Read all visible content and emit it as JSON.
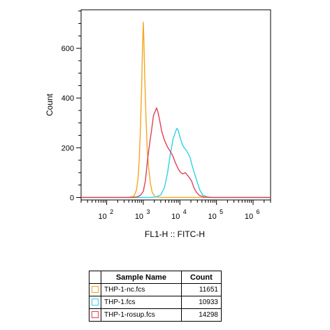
{
  "chart_data": {
    "type": "line",
    "title": "",
    "xlabel": "FL1-H :: FITC-H",
    "ylabel": "Count",
    "x_scale": "log",
    "x_ticks": [
      {
        "value": 100,
        "mantissa": "10",
        "exponent": "2"
      },
      {
        "value": 1000,
        "mantissa": "10",
        "exponent": "3"
      },
      {
        "value": 10000,
        "mantissa": "10",
        "exponent": "4"
      },
      {
        "value": 100000,
        "mantissa": "10",
        "exponent": "5"
      },
      {
        "value": 1000000,
        "mantissa": "10",
        "exponent": "6"
      }
    ],
    "y_ticks": [
      0,
      200,
      400,
      600
    ],
    "xlim": [
      20,
      3000000
    ],
    "ylim": [
      -10,
      755
    ],
    "grid": false,
    "series": [
      {
        "name": "THP-1-nc.fcs",
        "color": "#f5a623",
        "points": [
          [
            20,
            0
          ],
          [
            400,
            0
          ],
          [
            550,
            5
          ],
          [
            650,
            30
          ],
          [
            720,
            80
          ],
          [
            780,
            160
          ],
          [
            840,
            290
          ],
          [
            900,
            450
          ],
          [
            960,
            620
          ],
          [
            1000,
            705
          ],
          [
            1040,
            630
          ],
          [
            1100,
            480
          ],
          [
            1180,
            330
          ],
          [
            1280,
            190
          ],
          [
            1400,
            120
          ],
          [
            1550,
            60
          ],
          [
            1750,
            20
          ],
          [
            2100,
            3
          ],
          [
            3000,
            0
          ],
          [
            3000000,
            0
          ]
        ]
      },
      {
        "name": "THP-1.fcs",
        "color": "#2ed3e6",
        "points": [
          [
            20,
            0
          ],
          [
            1500,
            0
          ],
          [
            2200,
            2
          ],
          [
            3000,
            10
          ],
          [
            3800,
            40
          ],
          [
            4600,
            100
          ],
          [
            5500,
            175
          ],
          [
            6500,
            235
          ],
          [
            7500,
            262
          ],
          [
            8200,
            278
          ],
          [
            9000,
            270
          ],
          [
            10000,
            245
          ],
          [
            11500,
            215
          ],
          [
            13000,
            200
          ],
          [
            15000,
            190
          ],
          [
            17000,
            175
          ],
          [
            19000,
            160
          ],
          [
            22000,
            125
          ],
          [
            26000,
            90
          ],
          [
            30000,
            60
          ],
          [
            35000,
            30
          ],
          [
            42000,
            10
          ],
          [
            55000,
            2
          ],
          [
            80000,
            0
          ],
          [
            3000000,
            0
          ]
        ]
      },
      {
        "name": "THP-1-rosup.fcs",
        "color": "#e0405a",
        "points": [
          [
            20,
            0
          ],
          [
            500,
            0
          ],
          [
            700,
            3
          ],
          [
            850,
            10
          ],
          [
            1000,
            25
          ],
          [
            1150,
            70
          ],
          [
            1300,
            150
          ],
          [
            1500,
            220
          ],
          [
            1700,
            275
          ],
          [
            1900,
            330
          ],
          [
            2100,
            345
          ],
          [
            2300,
            360
          ],
          [
            2500,
            345
          ],
          [
            2800,
            310
          ],
          [
            3200,
            265
          ],
          [
            3800,
            230
          ],
          [
            4500,
            205
          ],
          [
            5500,
            185
          ],
          [
            6500,
            165
          ],
          [
            7500,
            140
          ],
          [
            9000,
            115
          ],
          [
            10500,
            100
          ],
          [
            12000,
            95
          ],
          [
            14000,
            100
          ],
          [
            16000,
            90
          ],
          [
            18000,
            80
          ],
          [
            21000,
            65
          ],
          [
            24000,
            40
          ],
          [
            28000,
            22
          ],
          [
            34000,
            8
          ],
          [
            45000,
            2
          ],
          [
            70000,
            0
          ],
          [
            3000000,
            0
          ]
        ]
      }
    ]
  },
  "legend": {
    "headers": {
      "name": "Sample Name",
      "count": "Count"
    },
    "rows": [
      {
        "name": "THP-1-nc.fcs",
        "count": "11651",
        "color": "#f5a623"
      },
      {
        "name": "THP-1.fcs",
        "count": "10933",
        "color": "#2ed3e6"
      },
      {
        "name": "THP-1-rosup.fcs",
        "count": "14298",
        "color": "#e0405a"
      }
    ]
  }
}
